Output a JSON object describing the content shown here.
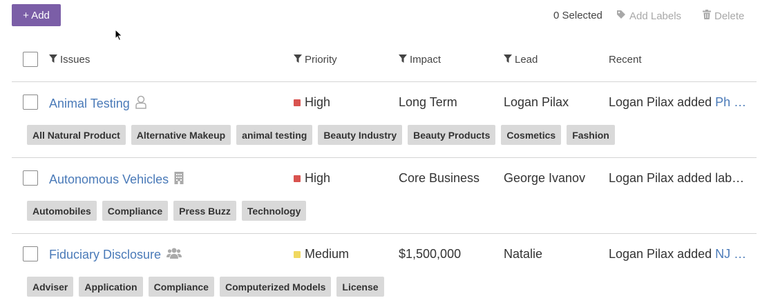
{
  "toolbar": {
    "add_label": "+ Add",
    "selected": "0 Selected",
    "add_labels": "Add Labels",
    "delete": "Delete"
  },
  "columns": {
    "issues": "Issues",
    "priority": "Priority",
    "impact": "Impact",
    "lead": "Lead",
    "recent": "Recent"
  },
  "rows": [
    {
      "title": "Animal Testing",
      "icon": "person-outline-icon",
      "priority": "High",
      "priority_color": "#d9534f",
      "impact": "Long Term",
      "lead": "Logan Pilax",
      "recent_prefix": "Logan Pilax added ",
      "recent_link": "Ph …",
      "tags": [
        "All Natural Product",
        "Alternative Makeup",
        "animal testing",
        "Beauty Industry",
        "Beauty Products",
        "Cosmetics",
        "Fashion"
      ]
    },
    {
      "title": "Autonomous Vehicles",
      "icon": "building-icon",
      "priority": "High",
      "priority_color": "#d9534f",
      "impact": "Core Business",
      "lead": "George Ivanov",
      "recent_prefix": "Logan Pilax added lab…",
      "recent_link": "",
      "tags": [
        "Automobiles",
        "Compliance",
        "Press Buzz",
        "Technology"
      ]
    },
    {
      "title": "Fiduciary Disclosure",
      "icon": "group-icon",
      "priority": "Medium",
      "priority_color": "#f0d860",
      "impact": "$1,500,000",
      "lead": "Natalie",
      "recent_prefix": "Logan Pilax added ",
      "recent_link": "NJ …",
      "tags": [
        "Adviser",
        "Application",
        "Compliance",
        "Computerized Models",
        "License"
      ]
    }
  ]
}
